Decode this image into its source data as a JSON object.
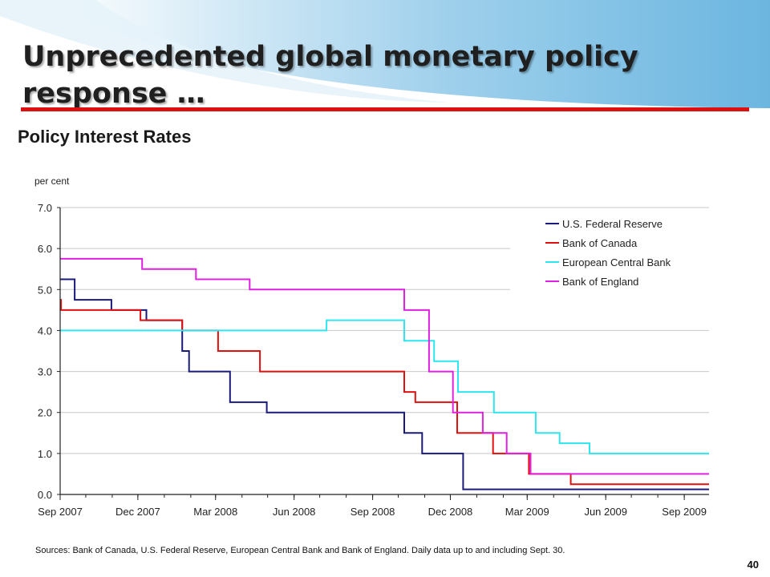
{
  "slide": {
    "title": "Unprecedented global monetary policy response …",
    "chart_heading": "Policy Interest Rates",
    "source": "Sources: Bank of Canada, U.S. Federal Reserve, European Central Bank and Bank of England. Daily data up to and including Sept. 30.",
    "page_number": "40"
  },
  "colors": {
    "title_rule": "#dd1111",
    "background_swoosh": "#8fc6e6",
    "fed": "#1a1a7a",
    "boc": "#e01010",
    "ecb": "#2de6f0",
    "boe": "#e020e0"
  },
  "chart_data": {
    "type": "line",
    "title": "Policy Interest Rates",
    "xlabel": "",
    "ylabel": "per cent",
    "ylim": [
      0,
      7
    ],
    "xlim": [
      "2007-09-01",
      "2009-09-30"
    ],
    "yticks": [
      "0.0",
      "1.0",
      "2.0",
      "3.0",
      "4.0",
      "5.0",
      "6.0",
      "7.0"
    ],
    "xticks": [
      {
        "date": "2007-09-01",
        "label": "Sep 2007"
      },
      {
        "date": "2007-12-01",
        "label": "Dec 2007"
      },
      {
        "date": "2008-03-01",
        "label": "Mar 2008"
      },
      {
        "date": "2008-06-01",
        "label": "Jun 2008"
      },
      {
        "date": "2008-09-01",
        "label": "Sep 2008"
      },
      {
        "date": "2008-12-01",
        "label": "Dec 2008"
      },
      {
        "date": "2009-03-01",
        "label": "Mar 2009"
      },
      {
        "date": "2009-06-01",
        "label": "Jun 2009"
      },
      {
        "date": "2009-09-01",
        "label": "Sep 2009"
      }
    ],
    "grid": "horizontal",
    "legend_position": "top-right",
    "series": [
      {
        "name": "U.S. Federal Reserve",
        "color_key": "fed",
        "step": true,
        "points": [
          [
            "2007-09-01",
            5.25
          ],
          [
            "2007-09-18",
            4.75
          ],
          [
            "2007-10-31",
            4.5
          ],
          [
            "2007-12-11",
            4.25
          ],
          [
            "2008-01-22",
            3.5
          ],
          [
            "2008-01-30",
            3.0
          ],
          [
            "2008-03-18",
            2.25
          ],
          [
            "2008-04-30",
            2.0
          ],
          [
            "2008-10-08",
            1.5
          ],
          [
            "2008-10-29",
            1.0
          ],
          [
            "2008-12-16",
            0.125
          ],
          [
            "2009-09-30",
            0.125
          ]
        ]
      },
      {
        "name": "Bank of Canada",
        "color_key": "boc",
        "step": true,
        "points": [
          [
            "2007-09-01",
            4.75
          ],
          [
            "2007-09-02",
            4.5
          ],
          [
            "2007-12-04",
            4.25
          ],
          [
            "2008-01-22",
            4.0
          ],
          [
            "2008-03-04",
            3.5
          ],
          [
            "2008-04-22",
            3.0
          ],
          [
            "2008-10-08",
            2.5
          ],
          [
            "2008-10-21",
            2.25
          ],
          [
            "2008-12-09",
            1.5
          ],
          [
            "2009-01-20",
            1.0
          ],
          [
            "2009-03-03",
            0.5
          ],
          [
            "2009-04-21",
            0.25
          ],
          [
            "2009-09-30",
            0.25
          ]
        ]
      },
      {
        "name": "European Central Bank",
        "color_key": "ecb",
        "step": true,
        "points": [
          [
            "2007-09-01",
            4.0
          ],
          [
            "2008-07-09",
            4.25
          ],
          [
            "2008-10-08",
            3.75
          ],
          [
            "2008-11-12",
            3.25
          ],
          [
            "2008-12-10",
            2.5
          ],
          [
            "2009-01-21",
            2.0
          ],
          [
            "2009-03-11",
            1.5
          ],
          [
            "2009-04-08",
            1.25
          ],
          [
            "2009-05-13",
            1.0
          ],
          [
            "2009-09-30",
            1.0
          ]
        ]
      },
      {
        "name": "Bank of England",
        "color_key": "boe",
        "step": true,
        "points": [
          [
            "2007-09-01",
            5.75
          ],
          [
            "2007-12-06",
            5.5
          ],
          [
            "2008-02-07",
            5.25
          ],
          [
            "2008-04-10",
            5.0
          ],
          [
            "2008-10-08",
            4.5
          ],
          [
            "2008-11-06",
            3.0
          ],
          [
            "2008-12-04",
            2.0
          ],
          [
            "2009-01-08",
            1.5
          ],
          [
            "2009-02-05",
            1.0
          ],
          [
            "2009-03-05",
            0.5
          ],
          [
            "2009-09-30",
            0.5
          ]
        ]
      }
    ]
  }
}
